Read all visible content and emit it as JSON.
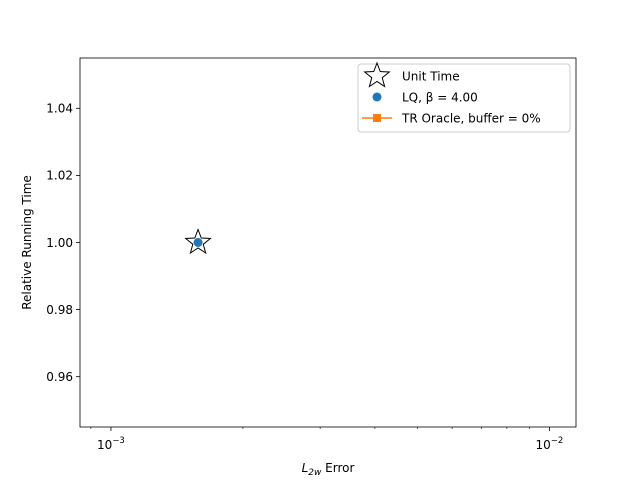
{
  "chart_data": {
    "type": "scatter",
    "xlabel_main": "L",
    "xlabel_sub": "2w",
    "xlabel_rest": " Error",
    "ylabel": "Relative Running Time",
    "xscale": "log",
    "xlim": [
      0.00085,
      0.0115
    ],
    "ylim": [
      0.945,
      1.055
    ],
    "x_ticks": [
      {
        "value": 0.001,
        "base": "10",
        "exp": "−3"
      },
      {
        "value": 0.01,
        "base": "10",
        "exp": "−2"
      }
    ],
    "y_ticks": [
      {
        "value": 0.96,
        "label": "0.96"
      },
      {
        "value": 0.98,
        "label": "0.98"
      },
      {
        "value": 1.0,
        "label": "1.00"
      },
      {
        "value": 1.02,
        "label": "1.02"
      },
      {
        "value": 1.04,
        "label": "1.04"
      }
    ],
    "grid": false,
    "legend_position": "top-right",
    "series": [
      {
        "name": "Unit Time",
        "marker": "star",
        "color": "#000000",
        "points": [
          {
            "x": 0.00158,
            "y": 1.0
          }
        ]
      },
      {
        "name": "LQ, β = 4.00",
        "marker": "circle",
        "color": "#1f77b4",
        "points": [
          {
            "x": 0.00158,
            "y": 1.0
          }
        ]
      },
      {
        "name": "TR Oracle, buffer = 0%",
        "marker": "square-line",
        "color": "#ff7f0e",
        "points": []
      }
    ]
  }
}
